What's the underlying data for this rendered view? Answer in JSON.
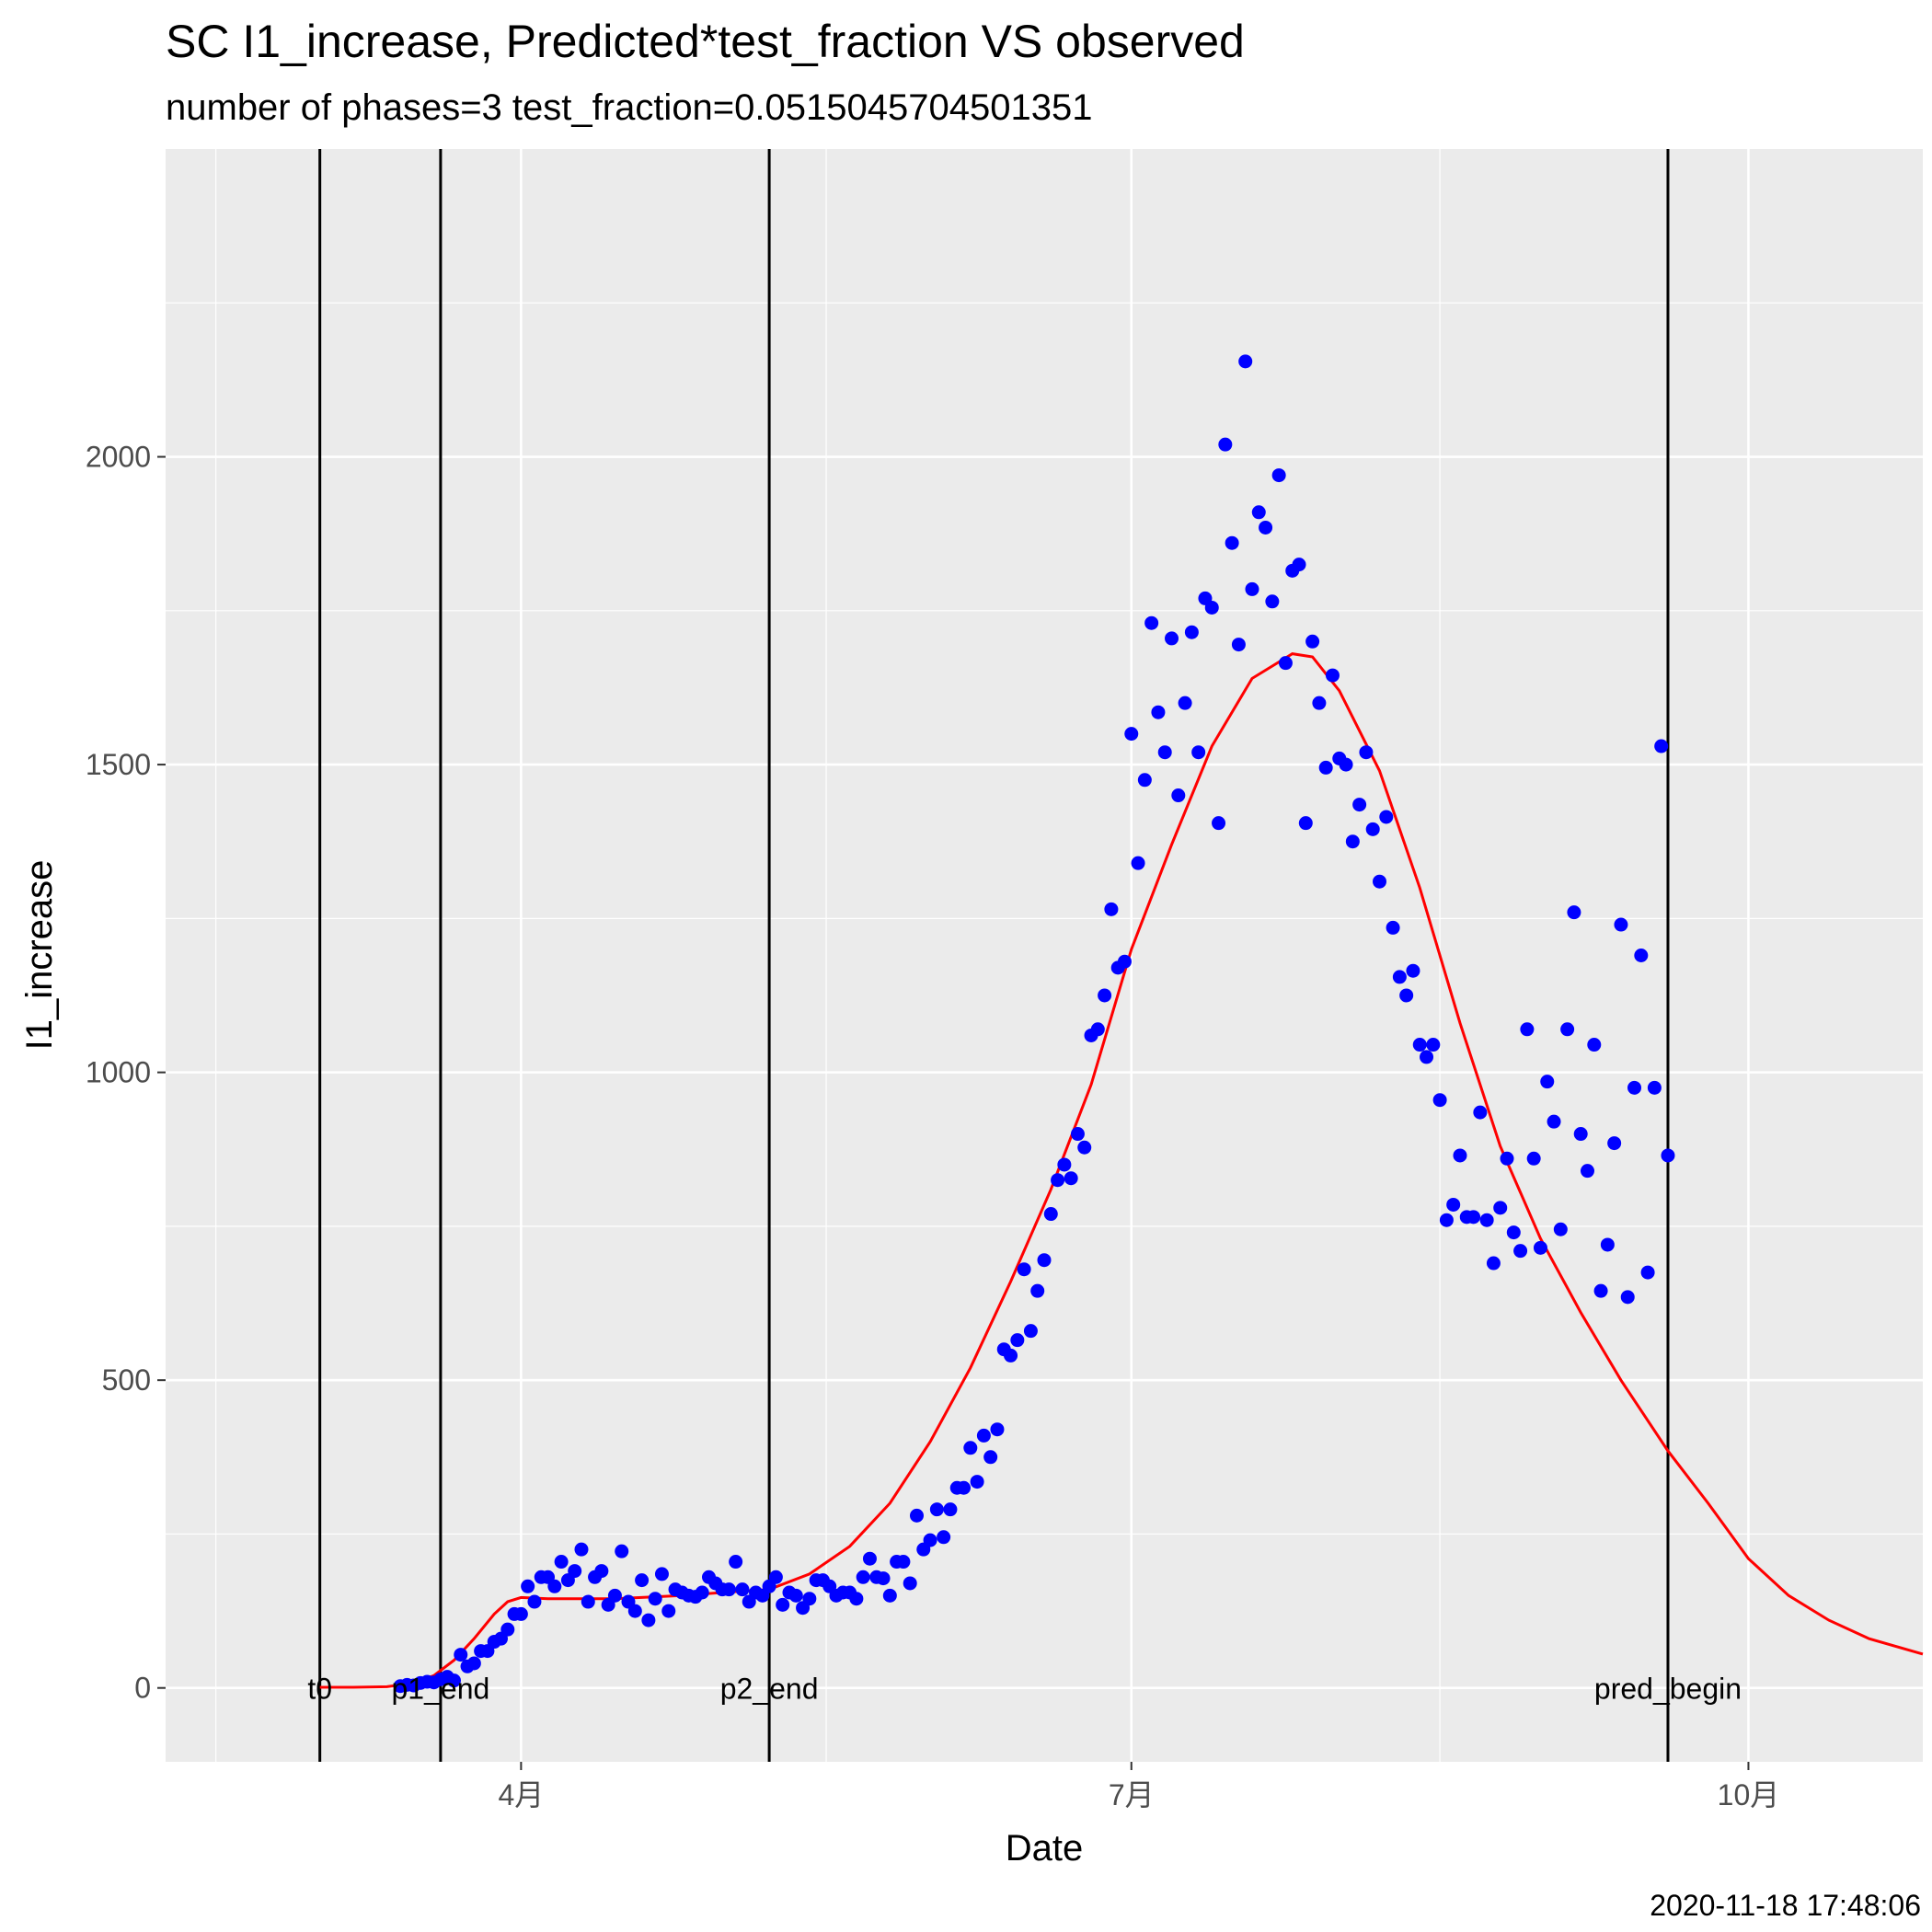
{
  "chart_data": {
    "type": "scatter",
    "title": "SC I1_increase, Predicted*test_fraction VS observed",
    "subtitle": "number of phases=3   test_fraction=0.0515045704501351",
    "xlabel": "Date",
    "ylabel": "I1_increase",
    "caption": "2020-11-18 17:48:06",
    "x_range": [
      "2020-02-08",
      "2020-10-27"
    ],
    "ylim": [
      -120,
      2500
    ],
    "grid": true,
    "x_ticks": [
      {
        "date": "2020-04-01",
        "label": "4月"
      },
      {
        "date": "2020-07-01",
        "label": "7月"
      },
      {
        "date": "2020-10-01",
        "label": "10月"
      }
    ],
    "y_ticks": [
      0,
      500,
      1000,
      1500,
      2000
    ],
    "vlines": [
      {
        "date": "2020-03-02",
        "label": "t0"
      },
      {
        "date": "2020-03-20",
        "label": "p1_end"
      },
      {
        "date": "2020-05-08",
        "label": "p2_end"
      },
      {
        "date": "2020-09-19",
        "label": "pred_begin"
      }
    ],
    "colors": {
      "observed": "#0000ff",
      "predicted": "#ff0000",
      "panel": "#ebebeb",
      "grid": "#ffffff"
    },
    "series": [
      {
        "type": "scatter",
        "points": [
          [
            "2020-03-14",
            3
          ],
          [
            "2020-03-15",
            5
          ],
          [
            "2020-03-16",
            4
          ],
          [
            "2020-03-17",
            8
          ],
          [
            "2020-03-18",
            10
          ],
          [
            "2020-03-19",
            9
          ],
          [
            "2020-03-20",
            14
          ],
          [
            "2020-03-21",
            18
          ],
          [
            "2020-03-22",
            12
          ],
          [
            "2020-03-23",
            54
          ],
          [
            "2020-03-24",
            35
          ],
          [
            "2020-03-25",
            40
          ],
          [
            "2020-03-26",
            60
          ],
          [
            "2020-03-27",
            60
          ],
          [
            "2020-03-28",
            75
          ],
          [
            "2020-03-29",
            80
          ],
          [
            "2020-03-30",
            95
          ],
          [
            "2020-03-31",
            120
          ],
          [
            "2020-04-01",
            120
          ],
          [
            "2020-04-02",
            165
          ],
          [
            "2020-04-03",
            140
          ],
          [
            "2020-04-04",
            180
          ],
          [
            "2020-04-05",
            180
          ],
          [
            "2020-04-06",
            165
          ],
          [
            "2020-04-07",
            205
          ],
          [
            "2020-04-08",
            175
          ],
          [
            "2020-04-09",
            190
          ],
          [
            "2020-04-10",
            225
          ],
          [
            "2020-04-11",
            140
          ],
          [
            "2020-04-12",
            180
          ],
          [
            "2020-04-13",
            190
          ],
          [
            "2020-04-14",
            135
          ],
          [
            "2020-04-15",
            150
          ],
          [
            "2020-04-16",
            222
          ],
          [
            "2020-04-17",
            140
          ],
          [
            "2020-04-18",
            125
          ],
          [
            "2020-04-19",
            175
          ],
          [
            "2020-04-20",
            110
          ],
          [
            "2020-04-21",
            145
          ],
          [
            "2020-04-22",
            185
          ],
          [
            "2020-04-23",
            125
          ],
          [
            "2020-04-24",
            160
          ],
          [
            "2020-04-25",
            155
          ],
          [
            "2020-04-26",
            150
          ],
          [
            "2020-04-27",
            148
          ],
          [
            "2020-04-28",
            155
          ],
          [
            "2020-04-29",
            180
          ],
          [
            "2020-04-30",
            170
          ],
          [
            "2020-05-01",
            160
          ],
          [
            "2020-05-02",
            160
          ],
          [
            "2020-05-03",
            205
          ],
          [
            "2020-05-04",
            160
          ],
          [
            "2020-05-05",
            140
          ],
          [
            "2020-05-06",
            155
          ],
          [
            "2020-05-07",
            150
          ],
          [
            "2020-05-08",
            165
          ],
          [
            "2020-05-09",
            180
          ],
          [
            "2020-05-10",
            135
          ],
          [
            "2020-05-11",
            155
          ],
          [
            "2020-05-12",
            150
          ],
          [
            "2020-05-13",
            130
          ],
          [
            "2020-05-14",
            145
          ],
          [
            "2020-05-15",
            175
          ],
          [
            "2020-05-16",
            175
          ],
          [
            "2020-05-17",
            165
          ],
          [
            "2020-05-18",
            150
          ],
          [
            "2020-05-19",
            155
          ],
          [
            "2020-05-20",
            155
          ],
          [
            "2020-05-21",
            145
          ],
          [
            "2020-05-22",
            180
          ],
          [
            "2020-05-23",
            210
          ],
          [
            "2020-05-24",
            180
          ],
          [
            "2020-05-25",
            178
          ],
          [
            "2020-05-26",
            150
          ],
          [
            "2020-05-27",
            205
          ],
          [
            "2020-05-28",
            205
          ],
          [
            "2020-05-29",
            170
          ],
          [
            "2020-05-30",
            280
          ],
          [
            "2020-05-31",
            225
          ],
          [
            "2020-06-01",
            240
          ],
          [
            "2020-06-02",
            290
          ],
          [
            "2020-06-03",
            245
          ],
          [
            "2020-06-04",
            290
          ],
          [
            "2020-06-05",
            325
          ],
          [
            "2020-06-06",
            325
          ],
          [
            "2020-06-07",
            390
          ],
          [
            "2020-06-08",
            335
          ],
          [
            "2020-06-09",
            410
          ],
          [
            "2020-06-10",
            375
          ],
          [
            "2020-06-11",
            420
          ],
          [
            "2020-06-12",
            550
          ],
          [
            "2020-06-13",
            540
          ],
          [
            "2020-06-14",
            565
          ],
          [
            "2020-06-15",
            680
          ],
          [
            "2020-06-16",
            580
          ],
          [
            "2020-06-17",
            645
          ],
          [
            "2020-06-18",
            695
          ],
          [
            "2020-06-19",
            770
          ],
          [
            "2020-06-20",
            825
          ],
          [
            "2020-06-21",
            850
          ],
          [
            "2020-06-22",
            828
          ],
          [
            "2020-06-23",
            900
          ],
          [
            "2020-06-24",
            878
          ],
          [
            "2020-06-25",
            1060
          ],
          [
            "2020-06-26",
            1070
          ],
          [
            "2020-06-27",
            1125
          ],
          [
            "2020-06-28",
            1265
          ],
          [
            "2020-06-29",
            1170
          ],
          [
            "2020-06-30",
            1180
          ],
          [
            "2020-07-01",
            1550
          ],
          [
            "2020-07-02",
            1340
          ],
          [
            "2020-07-03",
            1475
          ],
          [
            "2020-07-04",
            1730
          ],
          [
            "2020-07-05",
            1585
          ],
          [
            "2020-07-06",
            1520
          ],
          [
            "2020-07-07",
            1705
          ],
          [
            "2020-07-08",
            1450
          ],
          [
            "2020-07-09",
            1600
          ],
          [
            "2020-07-10",
            1715
          ],
          [
            "2020-07-11",
            1520
          ],
          [
            "2020-07-12",
            1770
          ],
          [
            "2020-07-13",
            1755
          ],
          [
            "2020-07-14",
            1405
          ],
          [
            "2020-07-15",
            2020
          ],
          [
            "2020-07-16",
            1860
          ],
          [
            "2020-07-17",
            1695
          ],
          [
            "2020-07-18",
            2155
          ],
          [
            "2020-07-19",
            1785
          ],
          [
            "2020-07-20",
            1910
          ],
          [
            "2020-07-21",
            1885
          ],
          [
            "2020-07-22",
            1765
          ],
          [
            "2020-07-23",
            1970
          ],
          [
            "2020-07-24",
            1665
          ],
          [
            "2020-07-25",
            1815
          ],
          [
            "2020-07-26",
            1825
          ],
          [
            "2020-07-27",
            1405
          ],
          [
            "2020-07-28",
            1700
          ],
          [
            "2020-07-29",
            1600
          ],
          [
            "2020-07-30",
            1495
          ],
          [
            "2020-07-31",
            1645
          ],
          [
            "2020-08-01",
            1510
          ],
          [
            "2020-08-02",
            1500
          ],
          [
            "2020-08-03",
            1375
          ],
          [
            "2020-08-04",
            1435
          ],
          [
            "2020-08-05",
            1520
          ],
          [
            "2020-08-06",
            1395
          ],
          [
            "2020-08-07",
            1310
          ],
          [
            "2020-08-08",
            1415
          ],
          [
            "2020-08-09",
            1235
          ],
          [
            "2020-08-10",
            1155
          ],
          [
            "2020-08-11",
            1125
          ],
          [
            "2020-08-12",
            1165
          ],
          [
            "2020-08-13",
            1045
          ],
          [
            "2020-08-14",
            1025
          ],
          [
            "2020-08-15",
            1045
          ],
          [
            "2020-08-16",
            955
          ],
          [
            "2020-08-17",
            760
          ],
          [
            "2020-08-18",
            785
          ],
          [
            "2020-08-19",
            865
          ],
          [
            "2020-08-20",
            765
          ],
          [
            "2020-08-21",
            765
          ],
          [
            "2020-08-22",
            935
          ],
          [
            "2020-08-23",
            760
          ],
          [
            "2020-08-24",
            690
          ],
          [
            "2020-08-25",
            780
          ],
          [
            "2020-08-26",
            860
          ],
          [
            "2020-08-27",
            740
          ],
          [
            "2020-08-28",
            710
          ],
          [
            "2020-08-29",
            1070
          ],
          [
            "2020-08-30",
            860
          ],
          [
            "2020-08-31",
            715
          ],
          [
            "2020-09-01",
            985
          ],
          [
            "2020-09-02",
            920
          ],
          [
            "2020-09-03",
            745
          ],
          [
            "2020-09-04",
            1070
          ],
          [
            "2020-09-05",
            1260
          ],
          [
            "2020-09-06",
            900
          ],
          [
            "2020-09-07",
            840
          ],
          [
            "2020-09-08",
            1045
          ],
          [
            "2020-09-09",
            645
          ],
          [
            "2020-09-10",
            720
          ],
          [
            "2020-09-11",
            885
          ],
          [
            "2020-09-12",
            1240
          ],
          [
            "2020-09-13",
            635
          ],
          [
            "2020-09-14",
            975
          ],
          [
            "2020-09-15",
            1190
          ],
          [
            "2020-09-16",
            675
          ],
          [
            "2020-09-17",
            975
          ],
          [
            "2020-09-18",
            1530
          ],
          [
            "2020-09-19",
            865
          ]
        ]
      },
      {
        "type": "line",
        "points": [
          [
            "2020-03-02",
            1
          ],
          [
            "2020-03-07",
            1
          ],
          [
            "2020-03-12",
            2
          ],
          [
            "2020-03-16",
            8
          ],
          [
            "2020-03-19",
            20
          ],
          [
            "2020-03-22",
            45
          ],
          [
            "2020-03-25",
            80
          ],
          [
            "2020-03-28",
            120
          ],
          [
            "2020-03-30",
            140
          ],
          [
            "2020-04-01",
            147
          ],
          [
            "2020-04-05",
            145
          ],
          [
            "2020-04-15",
            145
          ],
          [
            "2020-04-25",
            150
          ],
          [
            "2020-05-01",
            155
          ],
          [
            "2020-05-08",
            160
          ],
          [
            "2020-05-14",
            185
          ],
          [
            "2020-05-20",
            230
          ],
          [
            "2020-05-26",
            300
          ],
          [
            "2020-06-01",
            400
          ],
          [
            "2020-06-07",
            520
          ],
          [
            "2020-06-13",
            660
          ],
          [
            "2020-06-19",
            810
          ],
          [
            "2020-06-25",
            980
          ],
          [
            "2020-07-01",
            1200
          ],
          [
            "2020-07-07",
            1370
          ],
          [
            "2020-07-13",
            1530
          ],
          [
            "2020-07-19",
            1640
          ],
          [
            "2020-07-25",
            1680
          ],
          [
            "2020-07-28",
            1675
          ],
          [
            "2020-08-01",
            1620
          ],
          [
            "2020-08-07",
            1490
          ],
          [
            "2020-08-13",
            1300
          ],
          [
            "2020-08-19",
            1080
          ],
          [
            "2020-08-25",
            880
          ],
          [
            "2020-08-31",
            730
          ],
          [
            "2020-09-06",
            610
          ],
          [
            "2020-09-12",
            500
          ],
          [
            "2020-09-19",
            385
          ],
          [
            "2020-09-25",
            300
          ],
          [
            "2020-10-01",
            210
          ],
          [
            "2020-10-07",
            150
          ],
          [
            "2020-10-13",
            110
          ],
          [
            "2020-10-19",
            80
          ],
          [
            "2020-10-27",
            55
          ]
        ]
      }
    ]
  }
}
